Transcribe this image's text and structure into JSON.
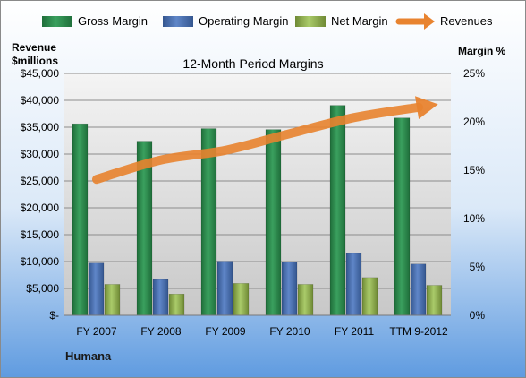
{
  "chart_data": {
    "type": "bar",
    "title": "12-Month Period Margins",
    "company": "Humana",
    "categories": [
      "FY 2007",
      "FY 2008",
      "FY 2009",
      "FY 2010",
      "FY 2011",
      "TTM 9-2012"
    ],
    "y_left": {
      "label_line1": "Revenue",
      "label_line2": "$millions",
      "range": [
        0,
        45000
      ],
      "ticks": [
        0,
        5000,
        10000,
        15000,
        20000,
        25000,
        30000,
        35000,
        40000,
        45000
      ],
      "tick_labels": [
        "$-",
        "$5,000",
        "$10,000",
        "$15,000",
        "$20,000",
        "$25,000",
        "$30,000",
        "$35,000",
        "$40,000",
        "$45,000"
      ]
    },
    "y_right": {
      "label": "Margin %",
      "range": [
        0,
        25
      ],
      "ticks": [
        0,
        5,
        10,
        15,
        20,
        25
      ],
      "tick_labels": [
        "0%",
        "5%",
        "10%",
        "15%",
        "20%",
        "25%"
      ]
    },
    "grid": true,
    "legend_position": "top",
    "series": [
      {
        "name": "Gross Margin",
        "axis": "right",
        "kind": "bar",
        "color": "#2e8b4f",
        "values": [
          19.8,
          18.0,
          19.3,
          19.2,
          21.7,
          20.4
        ]
      },
      {
        "name": "Operating Margin",
        "axis": "right",
        "kind": "bar",
        "color": "#4f74b8",
        "values": [
          5.4,
          3.7,
          5.6,
          5.5,
          6.4,
          5.3
        ]
      },
      {
        "name": "Net Margin",
        "axis": "right",
        "kind": "bar",
        "color": "#9bbb59",
        "values": [
          3.2,
          2.2,
          3.3,
          3.2,
          3.9,
          3.1
        ]
      },
      {
        "name": "Revenues",
        "axis": "left",
        "kind": "line",
        "color": "#e8832f",
        "values": [
          25300,
          28900,
          30700,
          33800,
          36800,
          38700
        ]
      }
    ]
  }
}
